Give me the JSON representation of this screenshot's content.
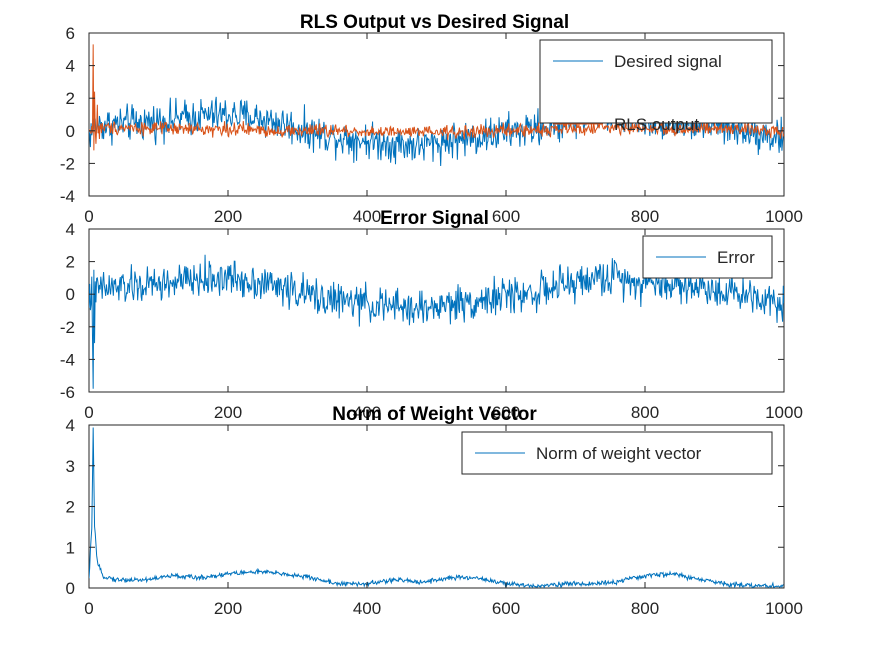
{
  "figure": {
    "background": "#ffffff"
  },
  "chart_data": [
    {
      "type": "line",
      "title": "RLS Output vs Desired Signal",
      "xlim": [
        0,
        1000
      ],
      "ylim": [
        -4,
        6
      ],
      "xticks": [
        0,
        200,
        400,
        600,
        800,
        1000
      ],
      "yticks": [
        -4,
        -2,
        0,
        2,
        4,
        6
      ],
      "legend_position": "top-right",
      "series": [
        {
          "name": "Desired signal",
          "color": "#0072bd",
          "anchors": [
            [
              0,
              -0.2
            ],
            [
              10,
              0.3
            ],
            [
              40,
              0.4
            ],
            [
              80,
              0.5
            ],
            [
              120,
              0.7
            ],
            [
              160,
              0.9
            ],
            [
              200,
              1.0
            ],
            [
              240,
              0.8
            ],
            [
              280,
              0.4
            ],
            [
              320,
              -0.1
            ],
            [
              360,
              -0.4
            ],
            [
              400,
              -0.6
            ],
            [
              440,
              -0.8
            ],
            [
              480,
              -0.9
            ],
            [
              520,
              -0.6
            ],
            [
              560,
              -0.4
            ],
            [
              600,
              -0.1
            ],
            [
              640,
              0.1
            ],
            [
              680,
              0.5
            ],
            [
              720,
              0.9
            ],
            [
              760,
              1.1
            ],
            [
              800,
              0.7
            ],
            [
              840,
              0.6
            ],
            [
              880,
              0.4
            ],
            [
              920,
              0.2
            ],
            [
              960,
              -0.1
            ],
            [
              1000,
              -0.5
            ]
          ],
          "noise": 0.55,
          "spikes": []
        },
        {
          "name": "RLS output",
          "color": "#d95319",
          "anchors": [
            [
              0,
              0
            ],
            [
              20,
              0.2
            ],
            [
              60,
              0.2
            ],
            [
              120,
              0.1
            ],
            [
              200,
              0.1
            ],
            [
              280,
              0
            ],
            [
              360,
              0
            ],
            [
              440,
              -0.1
            ],
            [
              520,
              -0.1
            ],
            [
              600,
              0
            ],
            [
              680,
              0.1
            ],
            [
              760,
              0.2
            ],
            [
              840,
              0.1
            ],
            [
              920,
              0.1
            ],
            [
              1000,
              0
            ]
          ],
          "noise": 0.2,
          "spikes": [
            [
              6,
              5.3
            ],
            [
              7,
              -1.2
            ],
            [
              8,
              2.4
            ],
            [
              10,
              -0.8
            ],
            [
              12,
              1.6
            ],
            [
              15,
              -0.5
            ]
          ]
        }
      ]
    },
    {
      "type": "line",
      "title": "Error Signal",
      "xlim": [
        0,
        1000
      ],
      "ylim": [
        -6,
        4
      ],
      "xticks": [
        0,
        200,
        400,
        600,
        800,
        1000
      ],
      "yticks": [
        -6,
        -4,
        -2,
        0,
        2,
        4
      ],
      "legend_position": "top-right",
      "series": [
        {
          "name": "Error",
          "color": "#0072bd",
          "anchors": [
            [
              0,
              -0.2
            ],
            [
              10,
              0.3
            ],
            [
              40,
              0.4
            ],
            [
              80,
              0.5
            ],
            [
              120,
              0.7
            ],
            [
              160,
              0.9
            ],
            [
              200,
              1.0
            ],
            [
              240,
              0.8
            ],
            [
              280,
              0.4
            ],
            [
              320,
              -0.1
            ],
            [
              360,
              -0.4
            ],
            [
              400,
              -0.6
            ],
            [
              440,
              -0.8
            ],
            [
              480,
              -0.9
            ],
            [
              520,
              -0.6
            ],
            [
              560,
              -0.4
            ],
            [
              600,
              -0.1
            ],
            [
              640,
              0.1
            ],
            [
              680,
              0.5
            ],
            [
              720,
              0.9
            ],
            [
              760,
              1.1
            ],
            [
              800,
              0.7
            ],
            [
              840,
              0.6
            ],
            [
              880,
              0.4
            ],
            [
              920,
              0.2
            ],
            [
              960,
              -0.1
            ],
            [
              1000,
              -0.5
            ]
          ],
          "noise": 0.55,
          "spikes": [
            [
              5,
              -2.5
            ],
            [
              6,
              -5.8
            ],
            [
              7,
              1.5
            ],
            [
              8,
              -3.0
            ],
            [
              10,
              -0.5
            ],
            [
              12,
              1.0
            ]
          ]
        }
      ]
    },
    {
      "type": "line",
      "title": "Norm of Weight Vector",
      "xlim": [
        0,
        1000
      ],
      "ylim": [
        0,
        4
      ],
      "xticks": [
        0,
        200,
        400,
        600,
        800,
        1000
      ],
      "yticks": [
        0,
        1,
        2,
        3,
        4
      ],
      "legend_position": "top-right",
      "series": [
        {
          "name": "Norm of weight vector",
          "color": "#0072bd",
          "anchors": [
            [
              0,
              0.2
            ],
            [
              4,
              1.5
            ],
            [
              6,
              3.9
            ],
            [
              8,
              1.5
            ],
            [
              12,
              0.6
            ],
            [
              20,
              0.3
            ],
            [
              40,
              0.2
            ],
            [
              80,
              0.2
            ],
            [
              120,
              0.3
            ],
            [
              160,
              0.25
            ],
            [
              200,
              0.35
            ],
            [
              240,
              0.4
            ],
            [
              280,
              0.35
            ],
            [
              320,
              0.25
            ],
            [
              360,
              0.1
            ],
            [
              400,
              0.1
            ],
            [
              440,
              0.2
            ],
            [
              480,
              0.15
            ],
            [
              520,
              0.25
            ],
            [
              560,
              0.25
            ],
            [
              600,
              0.1
            ],
            [
              640,
              0.05
            ],
            [
              680,
              0.1
            ],
            [
              720,
              0.1
            ],
            [
              760,
              0.15
            ],
            [
              800,
              0.3
            ],
            [
              840,
              0.35
            ],
            [
              880,
              0.2
            ],
            [
              920,
              0.1
            ],
            [
              960,
              0.05
            ],
            [
              1000,
              0.05
            ]
          ],
          "noise": 0.03,
          "spikes": []
        }
      ]
    }
  ]
}
